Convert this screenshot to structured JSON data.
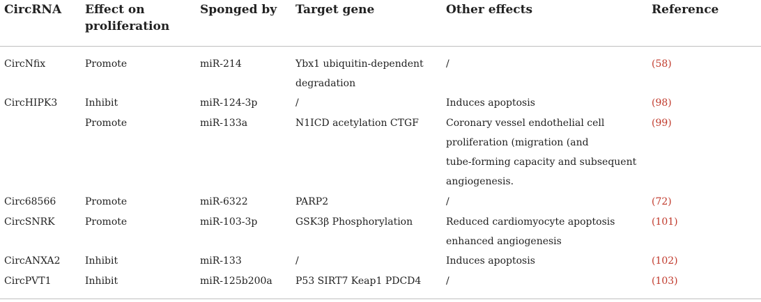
{
  "headers": [
    "CircRNA",
    "Effect on proliferation",
    "Sponged by",
    "Target gene",
    "Other effects",
    "Reference"
  ],
  "header_lines": {
    "effect": [
      "Effect on",
      "proliferation"
    ]
  },
  "rows": [
    {
      "circrna": "CircNfix",
      "effect": "Promote",
      "sponged": "miR-214",
      "target": [
        "Ybx1 ubiquitin-dependent",
        "degradation"
      ],
      "other": [
        "/"
      ],
      "ref": "(58)"
    },
    {
      "circrna": "CircHIPK3",
      "effect": "Inhibit",
      "sponged": "miR-124-3p",
      "target": [
        "/"
      ],
      "other": [
        "Induces apoptosis"
      ],
      "ref": "(98)"
    },
    {
      "circrna": "",
      "effect": "Promote",
      "sponged": "miR-133a",
      "target": [
        "N1ICD acetylation CTGF"
      ],
      "other": [
        "Coronary vessel endothelial cell",
        "proliferation (migration (and",
        "tube-forming capacity and subsequent",
        "angiogenesis."
      ],
      "ref": "(99)"
    },
    {
      "circrna": "Circ68566",
      "effect": "Promote",
      "sponged": "miR-6322",
      "target": [
        "PARP2"
      ],
      "other": [
        "/"
      ],
      "ref": "(72)"
    },
    {
      "circrna": "CircSNRK",
      "effect": "Promote",
      "sponged": "miR-103-3p",
      "target": [
        "GSK3β Phosphorylation"
      ],
      "other": [
        "Reduced cardiomyocyte apoptosis",
        "enhanced angiogenesis"
      ],
      "ref": "(101)"
    },
    {
      "circrna": "CircANXA2",
      "effect": "Inhibit",
      "sponged": "miR-133",
      "target": [
        "/"
      ],
      "other": [
        "Induces apoptosis"
      ],
      "ref": "(102)"
    },
    {
      "circrna": "CircPVT1",
      "effect": "Inhibit",
      "sponged": "miR-125b200a",
      "target": [
        "P53 SIRT7 Keap1 PDCD4"
      ],
      "other": [
        "/"
      ],
      "ref": "(103)"
    }
  ]
}
